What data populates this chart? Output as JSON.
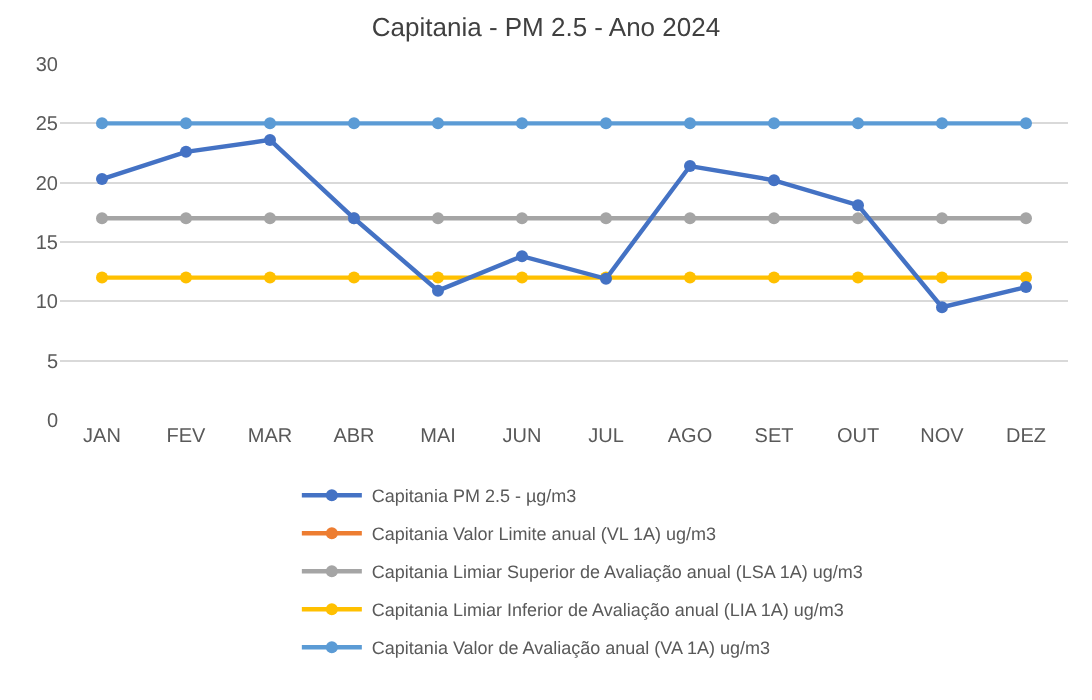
{
  "chart_data": {
    "type": "line",
    "title": "Capitania - PM 2.5 - Ano 2024",
    "categories": [
      "JAN",
      "FEV",
      "MAR",
      "ABR",
      "MAI",
      "JUN",
      "JUL",
      "AGO",
      "SET",
      "OUT",
      "NOV",
      "DEZ"
    ],
    "series": [
      {
        "name": "Capitania PM 2.5 - µg/m3",
        "color": "#4472c4",
        "values": [
          20.3,
          22.6,
          23.6,
          17.0,
          10.9,
          13.8,
          11.9,
          21.4,
          20.2,
          18.1,
          9.5,
          11.2
        ]
      },
      {
        "name": "Capitania Valor Limite anual (VL 1A) ug/m3",
        "color": "#ed7d31",
        "values": [
          null,
          null,
          null,
          null,
          null,
          null,
          null,
          null,
          null,
          null,
          null,
          null
        ]
      },
      {
        "name": "Capitania Limiar Superior de Avaliação anual (LSA 1A) ug/m3",
        "color": "#a5a5a5",
        "values": [
          17,
          17,
          17,
          17,
          17,
          17,
          17,
          17,
          17,
          17,
          17,
          17
        ]
      },
      {
        "name": "Capitania Limiar Inferior de Avaliação anual (LIA 1A) ug/m3",
        "color": "#ffc000",
        "values": [
          12,
          12,
          12,
          12,
          12,
          12,
          12,
          12,
          12,
          12,
          12,
          12
        ]
      },
      {
        "name": "Capitania Valor de Avaliação anual (VA 1A) ug/m3",
        "color": "#5b9bd5",
        "values": [
          25,
          25,
          25,
          25,
          25,
          25,
          25,
          25,
          25,
          25,
          25,
          25
        ]
      }
    ],
    "ylim": [
      0,
      30
    ],
    "yticks": [
      0,
      5,
      10,
      15,
      20,
      25,
      30
    ],
    "grid": "y",
    "legend": "bottom",
    "marker": "circle",
    "line_style": "solid"
  }
}
